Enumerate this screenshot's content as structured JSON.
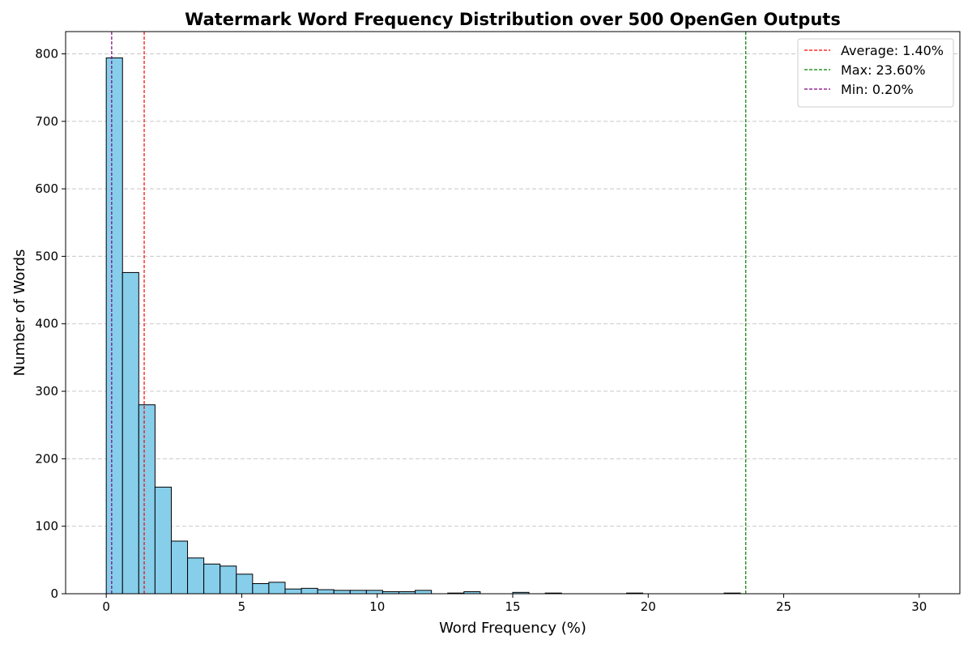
{
  "chart_data": {
    "type": "bar",
    "subtype": "histogram",
    "title": "Watermark Word Frequency Distribution over 500 OpenGen Outputs",
    "xlabel": "Word Frequency (%)",
    "ylabel": "Number of Words",
    "xlim": [
      -1.5,
      31.5
    ],
    "ylim": [
      0,
      833
    ],
    "x_ticks": [
      0,
      5,
      10,
      15,
      20,
      25,
      30
    ],
    "y_ticks": [
      0,
      100,
      200,
      300,
      400,
      500,
      600,
      700,
      800
    ],
    "grid": "y-dashed",
    "bar_color": "#87ceeb",
    "bar_edge_color": "#000000",
    "bin_width": 0.6,
    "bin_start": 0.0,
    "bins": [
      {
        "x0": 0.0,
        "count": 794
      },
      {
        "x0": 0.6,
        "count": 476
      },
      {
        "x0": 1.2,
        "count": 280
      },
      {
        "x0": 1.8,
        "count": 158
      },
      {
        "x0": 2.4,
        "count": 78
      },
      {
        "x0": 3.0,
        "count": 53
      },
      {
        "x0": 3.6,
        "count": 44
      },
      {
        "x0": 4.2,
        "count": 41
      },
      {
        "x0": 4.8,
        "count": 29
      },
      {
        "x0": 5.4,
        "count": 15
      },
      {
        "x0": 6.0,
        "count": 17
      },
      {
        "x0": 6.6,
        "count": 7
      },
      {
        "x0": 7.2,
        "count": 8
      },
      {
        "x0": 7.8,
        "count": 6
      },
      {
        "x0": 8.4,
        "count": 5
      },
      {
        "x0": 9.0,
        "count": 5
      },
      {
        "x0": 9.6,
        "count": 5
      },
      {
        "x0": 10.2,
        "count": 3
      },
      {
        "x0": 10.8,
        "count": 3
      },
      {
        "x0": 11.4,
        "count": 5
      },
      {
        "x0": 12.6,
        "count": 1
      },
      {
        "x0": 13.2,
        "count": 3
      },
      {
        "x0": 15.0,
        "count": 2
      },
      {
        "x0": 16.2,
        "count": 1
      },
      {
        "x0": 19.2,
        "count": 1
      },
      {
        "x0": 22.8,
        "count": 1
      }
    ],
    "reference_lines": [
      {
        "label": "Average: 1.40%",
        "x": 1.4,
        "color": "#ff0000"
      },
      {
        "label": "Max: 23.60%",
        "x": 23.6,
        "color": "#008000"
      },
      {
        "label": "Min: 0.20%",
        "x": 0.2,
        "color": "#800080"
      }
    ],
    "legend_position": "top-right"
  }
}
